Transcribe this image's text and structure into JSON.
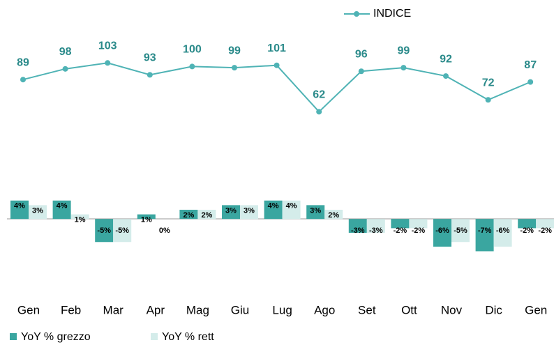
{
  "chart_data": {
    "type": "bar",
    "categories": [
      "Gen",
      "Feb",
      "Mar",
      "Apr",
      "Mag",
      "Giu",
      "Lug",
      "Ago",
      "Set",
      "Ott",
      "Nov",
      "Dic",
      "Gen"
    ],
    "ylim": [
      -16,
      46
    ],
    "y2lim": [
      -90,
      150
    ],
    "series": [
      {
        "name": "INDICE",
        "type": "line",
        "axis": "y2",
        "color": "#4fb3b5",
        "values": [
          89,
          98,
          103,
          93,
          100,
          99,
          101,
          62,
          96,
          99,
          92,
          72,
          87
        ]
      },
      {
        "name": "YoY % grezzo",
        "color": "#3aa6a0",
        "values": [
          4,
          4,
          -5,
          1,
          2,
          3,
          4,
          3,
          -3,
          -2,
          -6,
          -7,
          -2
        ],
        "value_labels": [
          "4%",
          "4%",
          "-5%",
          "1%",
          "2%",
          "3%",
          "4%",
          "3%",
          "-3%",
          "-2%",
          "-6%",
          "-7%",
          "-2%"
        ]
      },
      {
        "name": "YoY % rett",
        "color": "#d4ecea",
        "values": [
          3,
          1,
          -5,
          0,
          2,
          3,
          4,
          2,
          -3,
          -2,
          -5,
          -6,
          -2
        ],
        "value_labels": [
          "3%",
          "1%",
          "-5%",
          "0%",
          "2%",
          "3%",
          "4%",
          "2%",
          "-3%",
          "-2%",
          "-5%",
          "-6%",
          "-2%"
        ]
      }
    ]
  }
}
